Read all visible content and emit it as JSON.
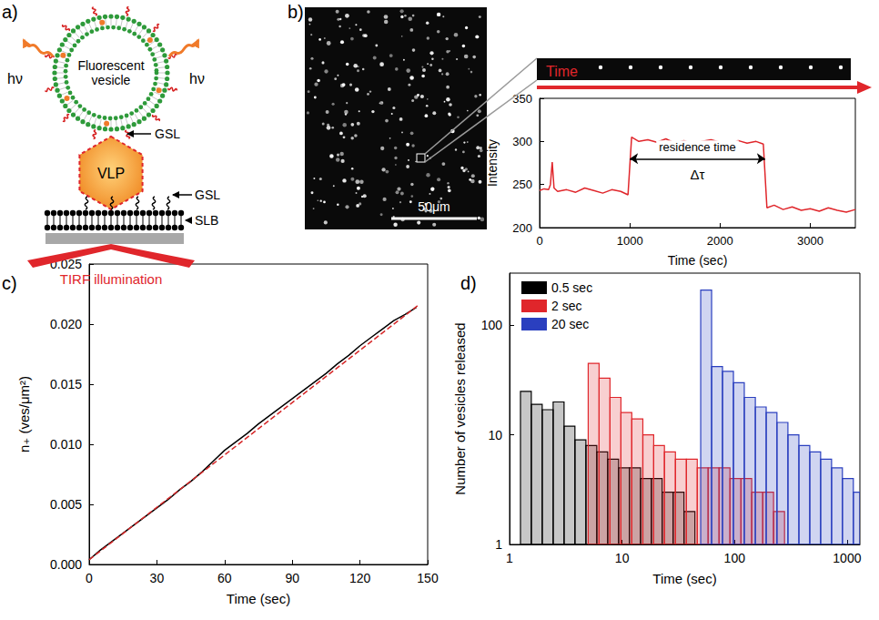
{
  "diagram": {
    "label": "a)",
    "vesicle": "Fluorescent vesicle",
    "emission": "hν",
    "gsl": "GSL",
    "particle": "VLP",
    "bilayer": "SLB",
    "illumination": "TIRF illumination"
  },
  "micrograph": {
    "label": "b)",
    "scale_bar": "50μm",
    "strip": "Time"
  },
  "chart_data": [
    {
      "type": "line",
      "x_label": "Time (sec)",
      "y_label": "Intensity",
      "color": "#e0262b",
      "grid": false,
      "x": [
        0,
        50,
        100,
        120,
        140,
        160,
        200,
        300,
        400,
        500,
        600,
        700,
        800,
        900,
        980,
        1020,
        1100,
        1200,
        1300,
        1400,
        1500,
        1600,
        1700,
        1800,
        1900,
        2000,
        2100,
        2200,
        2300,
        2400,
        2480,
        2520,
        2600,
        2700,
        2800,
        2900,
        3000,
        3100,
        3200,
        3300,
        3400,
        3500
      ],
      "values": [
        243,
        245,
        244,
        250,
        276,
        246,
        242,
        244,
        241,
        246,
        243,
        240,
        244,
        242,
        238,
        305,
        300,
        302,
        299,
        303,
        298,
        301,
        297,
        300,
        302,
        299,
        296,
        301,
        298,
        300,
        297,
        223,
        226,
        221,
        224,
        220,
        222,
        219,
        223,
        220,
        218,
        221
      ],
      "xlim": [
        0,
        3500
      ],
      "xticks": [
        0,
        1000,
        2000,
        3000
      ],
      "ylim": [
        200,
        350
      ],
      "yticks": [
        200,
        250,
        300,
        350
      ],
      "annotation": {
        "text": "residence time",
        "symbol": "Δτ",
        "from": 1000,
        "to": 2500,
        "y": 280
      }
    },
    {
      "type": "line",
      "panel": "c)",
      "x_label": "Time (sec)",
      "y_label": "n₊ (ves/μm²)",
      "grid": false,
      "x": [
        0,
        5,
        10,
        15,
        20,
        25,
        30,
        35,
        40,
        45,
        50,
        55,
        60,
        65,
        70,
        75,
        80,
        85,
        90,
        95,
        100,
        105,
        110,
        115,
        120,
        125,
        130,
        135,
        140,
        145
      ],
      "series": [
        {
          "color": "#000000",
          "line_style": "solid",
          "values": [
            0.0004,
            0.0012,
            0.0019,
            0.0026,
            0.0033,
            0.004,
            0.0047,
            0.0054,
            0.0062,
            0.0069,
            0.0077,
            0.0086,
            0.0095,
            0.0102,
            0.0109,
            0.0117,
            0.0124,
            0.0131,
            0.0138,
            0.0145,
            0.0152,
            0.0159,
            0.0167,
            0.0174,
            0.0182,
            0.0189,
            0.0196,
            0.0203,
            0.0208,
            0.0214
          ]
        },
        {
          "color": "#d62728",
          "line_style": "dashed",
          "x": [
            0,
            146
          ],
          "values": [
            0.0004,
            0.0216
          ]
        }
      ],
      "xlim": [
        0,
        150
      ],
      "xticks": [
        0,
        30,
        60,
        90,
        120,
        150
      ],
      "ylim": [
        0,
        0.025
      ],
      "yticks": [
        {
          "value": 0,
          "label": "0.000"
        },
        0.005,
        {
          "value": 0.01,
          "label": "0.010"
        },
        0.015,
        {
          "value": 0.02,
          "label": "0.020"
        },
        0.025
      ]
    },
    {
      "type": "histogram",
      "panel": "d)",
      "x_label": "Time (sec)",
      "y_label": "Number of vesicles released",
      "log": true,
      "grid": false,
      "legend": "upper left",
      "series": [
        {
          "name": "0.5 sec",
          "color": "#000000",
          "bins": [
            1.25,
            1.56,
            1.95,
            2.44,
            3.05,
            3.81,
            4.77,
            5.96,
            7.45,
            9.31,
            11.6,
            14.6,
            18.2,
            22.7,
            28.4,
            35.5,
            44.4
          ],
          "values": [
            25,
            19,
            17,
            20,
            12,
            9,
            8,
            7,
            6,
            5,
            5,
            4,
            4,
            3,
            3,
            2
          ]
        },
        {
          "name": "2 sec",
          "color": "#e0262b",
          "bins": [
            5,
            6.25,
            7.81,
            9.77,
            12.2,
            15.3,
            19.1,
            23.8,
            29.8,
            37.3,
            46.6,
            58.2,
            72.8,
            91,
            114,
            142,
            178,
            222,
            278
          ],
          "values": [
            45,
            33,
            22,
            16,
            14,
            10,
            8,
            7,
            6,
            6,
            5,
            5,
            5,
            4,
            4,
            3,
            3,
            2
          ]
        },
        {
          "name": "20 sec",
          "color": "#2a3fbf",
          "bins": [
            50,
            62.5,
            78.1,
            97.7,
            122,
            153,
            191,
            238,
            298,
            373,
            466,
            582,
            728,
            909,
            1137,
            1300
          ],
          "values": [
            210,
            42,
            38,
            30,
            22,
            18,
            16,
            13,
            10,
            8,
            7,
            6,
            5,
            4,
            3
          ]
        }
      ],
      "xlim": [
        1,
        1300
      ],
      "xticks": [
        1,
        10,
        100,
        1000
      ],
      "ylim": [
        1,
        300
      ],
      "yticks": [
        1,
        10,
        100
      ]
    }
  ]
}
